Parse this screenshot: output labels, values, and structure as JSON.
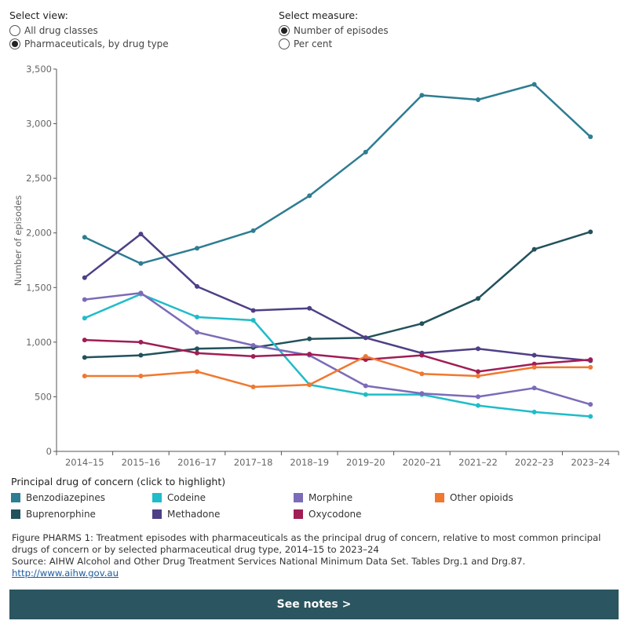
{
  "controls": {
    "view": {
      "title": "Select view:",
      "options": [
        {
          "label": "All drug classes",
          "checked": false
        },
        {
          "label": "Pharmaceuticals, by drug type",
          "checked": true
        }
      ]
    },
    "measure": {
      "title": "Select measure:",
      "options": [
        {
          "label": "Number of episodes",
          "checked": true
        },
        {
          "label": "Per cent",
          "checked": false
        }
      ]
    }
  },
  "legend": {
    "title": "Principal drug of concern (click to highlight)"
  },
  "caption": {
    "figure": "Figure PHARMS 1: Treatment episodes with pharmaceuticals as the principal drug of concern, relative to most common principal drugs of concern or by selected pharmaceutical drug type, 2014–15 to 2023–24",
    "source": "Source: AIHW Alcohol and Other Drug Treatment Services National Minimum Data Set. Tables Drg.1 and Drg.87.",
    "link": "http://www.aihw.gov.au"
  },
  "notes_button": "See notes >",
  "chart_data": {
    "type": "line",
    "ylabel": "Number of episodes",
    "xlabel": "",
    "ylim": [
      0,
      3500
    ],
    "yticks": [
      0,
      500,
      1000,
      1500,
      2000,
      2500,
      3000,
      3500
    ],
    "ytick_labels": [
      "0",
      "500",
      "1,000",
      "1,500",
      "2,000",
      "2,500",
      "3,000",
      "3,500"
    ],
    "grid": false,
    "categories": [
      "2014–15",
      "2015–16",
      "2016–17",
      "2017–18",
      "2018–19",
      "2019–20",
      "2020–21",
      "2021–22",
      "2022–23",
      "2023–24"
    ],
    "series": [
      {
        "name": "Benzodiazepines",
        "color": "#2e7d92",
        "values": [
          1960,
          1720,
          1860,
          2020,
          2340,
          2740,
          3260,
          3220,
          3360,
          2880
        ]
      },
      {
        "name": "Buprenorphine",
        "color": "#22525c",
        "values": [
          860,
          880,
          940,
          950,
          1030,
          1040,
          1170,
          1400,
          1850,
          2010
        ]
      },
      {
        "name": "Codeine",
        "color": "#1fbcc9",
        "values": [
          1220,
          1440,
          1230,
          1200,
          610,
          520,
          520,
          420,
          360,
          320
        ]
      },
      {
        "name": "Methadone",
        "color": "#4f3f86",
        "values": [
          1590,
          1990,
          1510,
          1290,
          1310,
          1040,
          900,
          940,
          880,
          830
        ]
      },
      {
        "name": "Morphine",
        "color": "#7c6bb8",
        "values": [
          1390,
          1450,
          1090,
          970,
          880,
          600,
          530,
          500,
          580,
          430
        ]
      },
      {
        "name": "Oxycodone",
        "color": "#a01d55",
        "values": [
          1020,
          1000,
          900,
          870,
          890,
          840,
          880,
          730,
          800,
          840
        ]
      },
      {
        "name": "Other opioids",
        "color": "#f07830",
        "values": [
          690,
          690,
          730,
          590,
          610,
          870,
          710,
          690,
          770,
          770
        ]
      }
    ]
  }
}
